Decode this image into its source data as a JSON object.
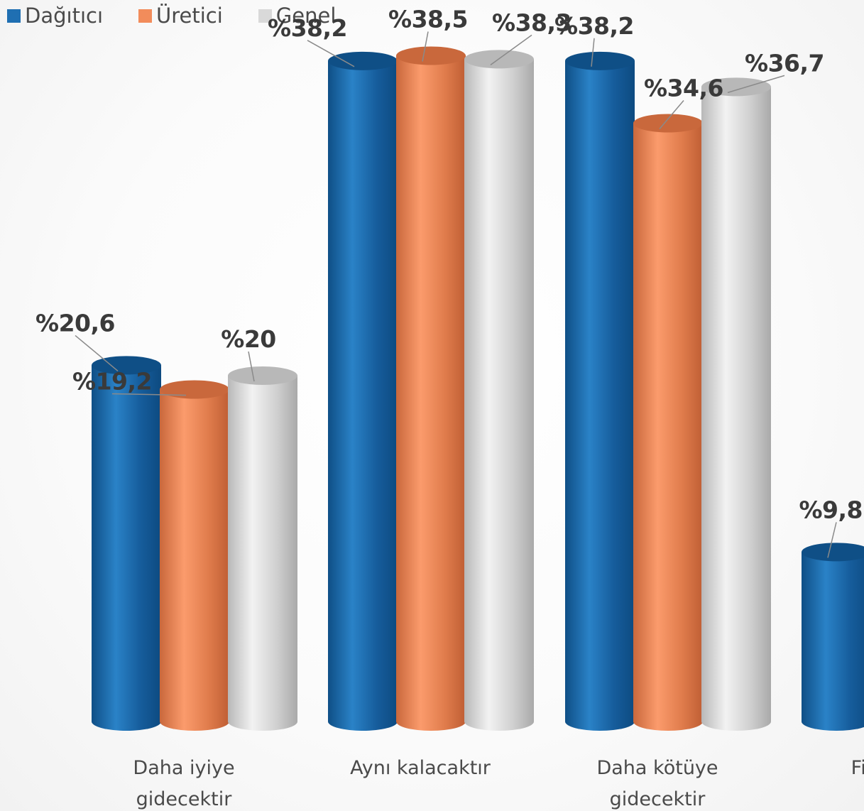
{
  "chart_data": {
    "type": "bar",
    "categories": [
      [
        "Daha iyiye",
        "gidecektir"
      ],
      [
        "Aynı kalacaktır"
      ],
      [
        "Daha kötüye",
        "gidecektir"
      ],
      [
        "Fik"
      ]
    ],
    "series": [
      {
        "name": "Dağıtıcı",
        "color": "#1f6fb2",
        "values": [
          20.6,
          38.2,
          38.2,
          9.8
        ],
        "labels": [
          "%20,6",
          "%38,2",
          "%38,2",
          "%9,8"
        ]
      },
      {
        "name": "Üretici",
        "color": "#f28c5b",
        "values": [
          19.2,
          38.5,
          34.6,
          null
        ],
        "labels": [
          "%19,2",
          "%38,5",
          "%34,6",
          ""
        ]
      },
      {
        "name": "Genel",
        "color": "#d9d9d9",
        "values": [
          20,
          38.3,
          36.7,
          null
        ],
        "labels": [
          "%20",
          "%38,3",
          "%36,7",
          ""
        ]
      }
    ],
    "ylim": [
      0,
      40
    ],
    "grid": false,
    "legend": "top-left"
  }
}
